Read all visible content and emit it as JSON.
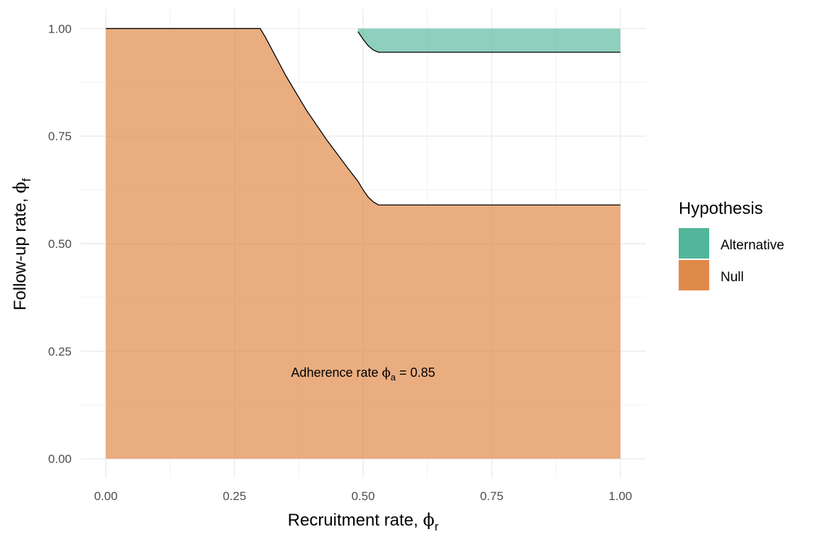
{
  "chart_data": {
    "type": "area",
    "title": "",
    "xlabel": "Recruitment rate, ",
    "xlabel_symbol": "ϕ",
    "xlabel_subscript": "r",
    "ylabel": "Follow-up rate, ",
    "ylabel_symbol": "ϕ",
    "ylabel_subscript": "f",
    "xlim": [
      -0.05,
      1.05
    ],
    "ylim": [
      -0.045,
      1.045
    ],
    "x_ticks": [
      0.0,
      0.25,
      0.5,
      0.75,
      1.0
    ],
    "x_tick_labels": [
      "0.00",
      "0.25",
      "0.50",
      "0.75",
      "1.00"
    ],
    "y_ticks": [
      0.0,
      0.25,
      0.5,
      0.75,
      1.0
    ],
    "y_tick_labels": [
      "0.00",
      "0.25",
      "0.50",
      "0.75",
      "1.00"
    ],
    "grid": true,
    "legend": {
      "title": "Hypothesis",
      "position": "right",
      "entries": [
        {
          "label": "Alternative",
          "color": "#52b69a"
        },
        {
          "label": "Null",
          "color": "#e08a4a"
        }
      ]
    },
    "annotation": {
      "prefix": "Adherence rate ",
      "symbol": "ϕ",
      "subscript": "a",
      "suffix": " = 0.85",
      "x": 0.5,
      "y": 0.2
    },
    "series": [
      {
        "name": "Null",
        "color": "#e08a4a",
        "opacity": 0.7,
        "x": [
          0.0,
          0.3,
          0.31,
          0.33,
          0.35,
          0.37,
          0.39,
          0.41,
          0.43,
          0.45,
          0.47,
          0.49,
          0.5,
          0.51,
          0.52,
          0.53,
          1.0
        ],
        "upper": [
          1.0,
          1.0,
          0.98,
          0.935,
          0.89,
          0.85,
          0.81,
          0.775,
          0.74,
          0.708,
          0.676,
          0.645,
          0.625,
          0.608,
          0.597,
          0.59,
          0.59
        ],
        "lower": [
          0,
          0,
          0,
          0,
          0,
          0,
          0,
          0,
          0,
          0,
          0,
          0,
          0,
          0,
          0,
          0,
          0
        ]
      },
      {
        "name": "Alternative",
        "color": "#52b69a",
        "opacity": 0.65,
        "x": [
          0.49,
          0.5,
          0.51,
          0.52,
          0.53,
          1.0
        ],
        "upper": [
          1.0,
          1.0,
          1.0,
          1.0,
          1.0,
          1.0
        ],
        "lower": [
          0.993,
          0.975,
          0.96,
          0.95,
          0.945,
          0.945
        ]
      }
    ]
  }
}
